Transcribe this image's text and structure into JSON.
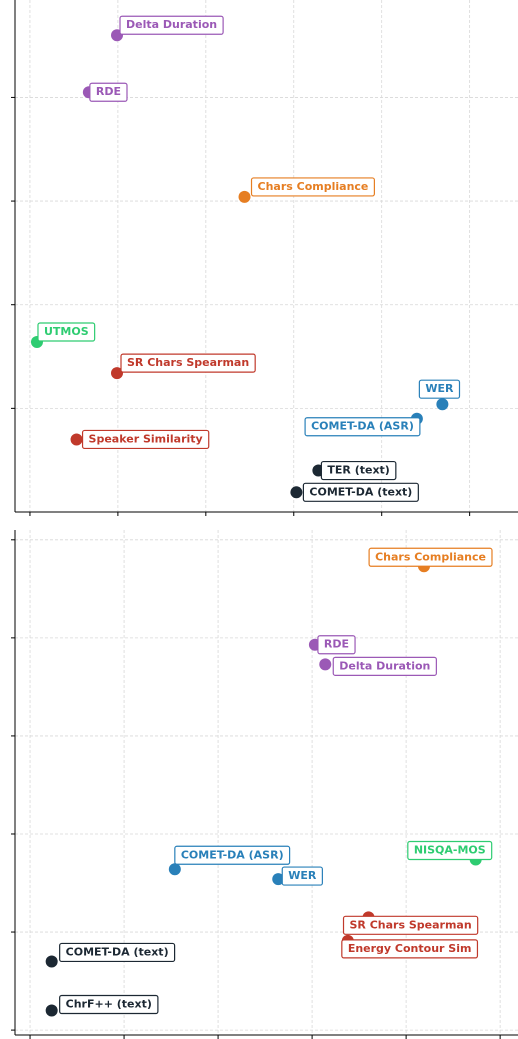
{
  "chart_data": [
    {
      "type": "scatter",
      "xlim": [
        -0.17,
        5.55
      ],
      "ylim": [
        0,
        4.94
      ],
      "xticks": [
        0,
        1,
        2,
        3,
        4,
        5
      ],
      "yticks": [
        1,
        2,
        3,
        4
      ],
      "grid": true,
      "series": [
        {
          "name": "Delta Duration",
          "color": "#9b59b6",
          "x": [
            0.99
          ],
          "values": [
            4.6
          ]
        },
        {
          "name": "RDE",
          "color": "#9b59b6",
          "x": [
            0.67
          ],
          "values": [
            4.05
          ]
        },
        {
          "name": "Chars Compliance",
          "color": "#e67e22",
          "x": [
            2.44
          ],
          "values": [
            3.04
          ]
        },
        {
          "name": "UTMOS",
          "color": "#2ecc71",
          "x": [
            0.08
          ],
          "values": [
            1.64
          ]
        },
        {
          "name": "SR Chars Spearman",
          "color": "#c0392b",
          "x": [
            0.99
          ],
          "values": [
            1.34
          ]
        },
        {
          "name": "WER",
          "color": "#2980b9",
          "x": [
            4.69
          ],
          "values": [
            1.04
          ]
        },
        {
          "name": "COMET-DA (ASR)",
          "color": "#2980b9",
          "x": [
            4.4
          ],
          "values": [
            0.9
          ]
        },
        {
          "name": "Speaker Similarity",
          "color": "#c0392b",
          "x": [
            0.53
          ],
          "values": [
            0.7
          ]
        },
        {
          "name": "TER (text)",
          "color": "#1c2833",
          "x": [
            3.28
          ],
          "values": [
            0.4
          ]
        },
        {
          "name": "COMET-DA (text)",
          "color": "#1c2833",
          "x": [
            3.03
          ],
          "values": [
            0.19
          ]
        }
      ]
    },
    {
      "type": "scatter",
      "xlim": [
        -0.16,
        5.19
      ],
      "ylim": [
        -0.05,
        5.1
      ],
      "xticks": [
        0,
        1,
        2,
        3,
        4,
        5
      ],
      "yticks": [
        0,
        1,
        2,
        3,
        4,
        5
      ],
      "grid": true,
      "series": [
        {
          "name": "Chars Compliance",
          "color": "#e67e22",
          "x": [
            4.19
          ],
          "values": [
            4.73
          ]
        },
        {
          "name": "RDE",
          "color": "#9b59b6",
          "x": [
            3.03
          ],
          "values": [
            3.93
          ]
        },
        {
          "name": "Delta Duration",
          "color": "#9b59b6",
          "x": [
            3.14
          ],
          "values": [
            3.73
          ]
        },
        {
          "name": "NISQA-MOS",
          "color": "#2ecc71",
          "x": [
            4.74
          ],
          "values": [
            1.74
          ]
        },
        {
          "name": "COMET-DA (ASR)",
          "color": "#2980b9",
          "x": [
            1.54
          ],
          "values": [
            1.64
          ]
        },
        {
          "name": "WER",
          "color": "#2980b9",
          "x": [
            2.64
          ],
          "values": [
            1.54
          ]
        },
        {
          "name": "SR Chars Spearman",
          "color": "#c0392b",
          "x": [
            3.6
          ],
          "values": [
            1.15
          ]
        },
        {
          "name": "Energy Contour Sim",
          "color": "#c0392b",
          "x": [
            3.38
          ],
          "values": [
            0.91
          ]
        },
        {
          "name": "COMET-DA (text)",
          "color": "#1c2833",
          "x": [
            0.23
          ],
          "values": [
            0.7
          ]
        },
        {
          "name": "ChrF++ (text)",
          "color": "#1c2833",
          "x": [
            0.23
          ],
          "values": [
            0.2
          ]
        }
      ]
    }
  ]
}
